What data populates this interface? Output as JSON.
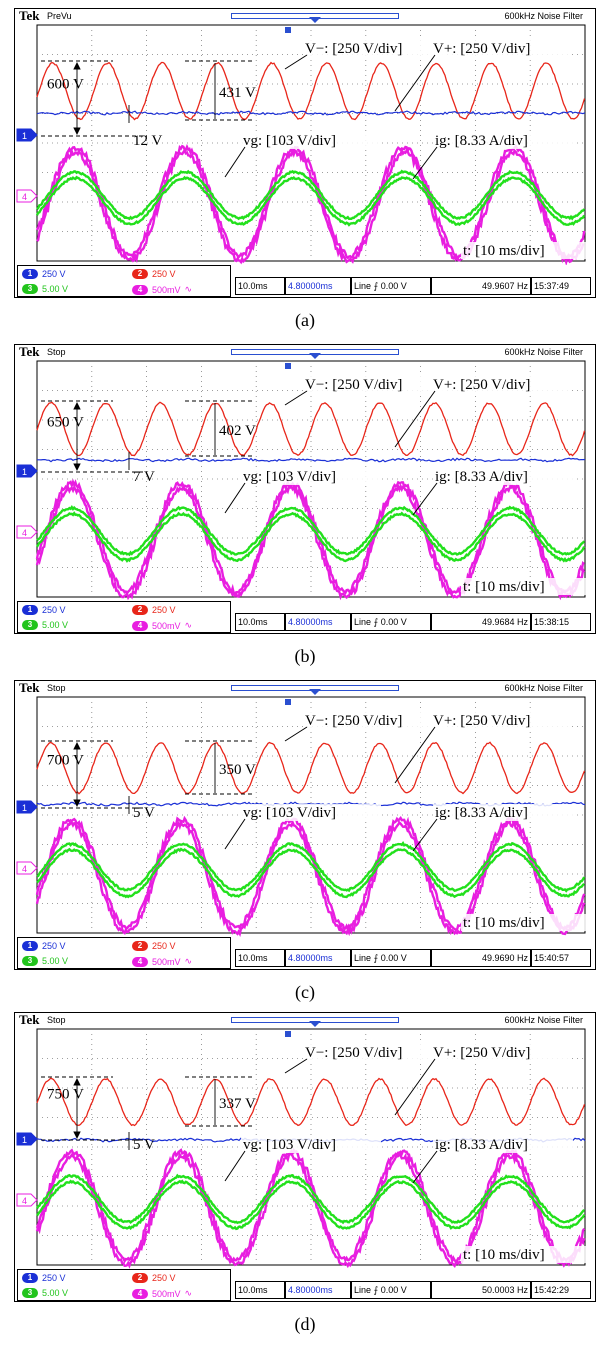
{
  "panels": [
    {
      "id": "a",
      "caption": "(a)",
      "header": {
        "brand": "Tek",
        "acq_state": "PreVu",
        "filter": "600kHz  Noise Filter"
      },
      "settings": {
        "ch1": "250 V",
        "ch2": "250 V",
        "ch3": "5.00 V",
        "ch4": "500mV",
        "timebase": "10.0ms",
        "delay": "4.80000ms",
        "trigger": "Line  ⨍ 0.00 V",
        "freq": "49.9607 Hz",
        "time": "15:37:49"
      },
      "labels": {
        "vminus": "V−: [250 V/div]",
        "vplus": "V+: [250 V/div]",
        "vg": "vg: [103 V/div]",
        "ig": "ig: [8.33 A/div]",
        "t": "t: [10 ms/div]"
      },
      "annotations": {
        "vminus_pp": "600 V",
        "vminus_amp": "431 V",
        "vplus_ripple": "12 V"
      }
    },
    {
      "id": "b",
      "caption": "(b)",
      "header": {
        "brand": "Tek",
        "acq_state": "Stop",
        "filter": "600kHz  Noise Filter"
      },
      "settings": {
        "ch1": "250 V",
        "ch2": "250 V",
        "ch3": "5.00 V",
        "ch4": "500mV",
        "timebase": "10.0ms",
        "delay": "4.80000ms",
        "trigger": "Line  ⨍ 0.00 V",
        "freq": "49.9684 Hz",
        "time": "15:38:15"
      },
      "labels": {
        "vminus": "V−: [250 V/div]",
        "vplus": "V+: [250 V/div]",
        "vg": "vg: [103 V/div]",
        "ig": "ig: [8.33 A/div]",
        "t": "t: [10 ms/div]"
      },
      "annotations": {
        "vminus_pp": "650 V",
        "vminus_amp": "402 V",
        "vplus_ripple": "7 V"
      }
    },
    {
      "id": "c",
      "caption": "(c)",
      "header": {
        "brand": "Tek",
        "acq_state": "Stop",
        "filter": "600kHz  Noise Filter"
      },
      "settings": {
        "ch1": "250 V",
        "ch2": "250 V",
        "ch3": "5.00 V",
        "ch4": "500mV",
        "timebase": "10.0ms",
        "delay": "4.80000ms",
        "trigger": "Line  ⨍ 0.00 V",
        "freq": "49.9690 Hz",
        "time": "15:40:57"
      },
      "labels": {
        "vminus": "V−: [250 V/div]",
        "vplus": "V+: [250 V/div]",
        "vg": "vg: [103 V/div]",
        "ig": "ig: [8.33 A/div]",
        "t": "t: [10 ms/div]"
      },
      "annotations": {
        "vminus_pp": "700 V",
        "vminus_amp": "350 V",
        "vplus_ripple": "5 V"
      }
    },
    {
      "id": "d",
      "caption": "(d)",
      "header": {
        "brand": "Tek",
        "acq_state": "Stop",
        "filter": "600kHz  Noise Filter"
      },
      "settings": {
        "ch1": "250 V",
        "ch2": "250 V",
        "ch3": "5.00 V",
        "ch4": "500mV",
        "timebase": "10.0ms",
        "delay": "4.80000ms",
        "trigger": "Line  ⨍ 0.00 V",
        "freq": "50.0003 Hz",
        "time": "15:42:29"
      },
      "labels": {
        "vminus": "V−: [250 V/div]",
        "vplus": "V+: [250 V/div]",
        "vg": "vg: [103 V/div]",
        "ig": "ig: [8.33 A/div]",
        "t": "t: [10 ms/div]"
      },
      "annotations": {
        "vminus_pp": "750 V",
        "vminus_amp": "337 V",
        "vplus_ripple": "5 V"
      }
    }
  ],
  "colors": {
    "vminus": "#e8261a",
    "vplus": "#1a2fd6",
    "vg": "#22e01c",
    "ig": "#e81ee0",
    "grid": "#808080",
    "ch1": "#1a2fd6",
    "ch2": "#e8261a",
    "ch3": "#22c41c",
    "ch4": "#e81ee0"
  },
  "chart_data": [
    {
      "type": "line",
      "panel": "a",
      "x_unit": "ms",
      "xlim": [
        0,
        100
      ],
      "series": [
        {
          "name": "V−",
          "period_ms": 10,
          "peak_to_peak_V": 431,
          "max_V": 600
        },
        {
          "name": "V+",
          "ripple_V": 12
        },
        {
          "name": "vg",
          "frequency_Hz": 49.9607
        },
        {
          "name": "ig",
          "frequency_Hz": 49.9607
        }
      ]
    },
    {
      "type": "line",
      "panel": "b",
      "x_unit": "ms",
      "xlim": [
        0,
        100
      ],
      "series": [
        {
          "name": "V−",
          "period_ms": 10,
          "peak_to_peak_V": 402,
          "max_V": 650
        },
        {
          "name": "V+",
          "ripple_V": 7
        },
        {
          "name": "vg",
          "frequency_Hz": 49.9684
        },
        {
          "name": "ig",
          "frequency_Hz": 49.9684
        }
      ]
    },
    {
      "type": "line",
      "panel": "c",
      "x_unit": "ms",
      "xlim": [
        0,
        100
      ],
      "series": [
        {
          "name": "V−",
          "period_ms": 10,
          "peak_to_peak_V": 350,
          "max_V": 700
        },
        {
          "name": "V+",
          "ripple_V": 5
        },
        {
          "name": "vg",
          "frequency_Hz": 49.969
        },
        {
          "name": "ig",
          "frequency_Hz": 49.969
        }
      ]
    },
    {
      "type": "line",
      "panel": "d",
      "x_unit": "ms",
      "xlim": [
        0,
        100
      ],
      "series": [
        {
          "name": "V−",
          "period_ms": 10,
          "peak_to_peak_V": 337,
          "max_V": 750
        },
        {
          "name": "V+",
          "ripple_V": 5
        },
        {
          "name": "vg",
          "frequency_Hz": 50.0003
        },
        {
          "name": "ig",
          "frequency_Hz": 50.0003
        }
      ]
    }
  ]
}
